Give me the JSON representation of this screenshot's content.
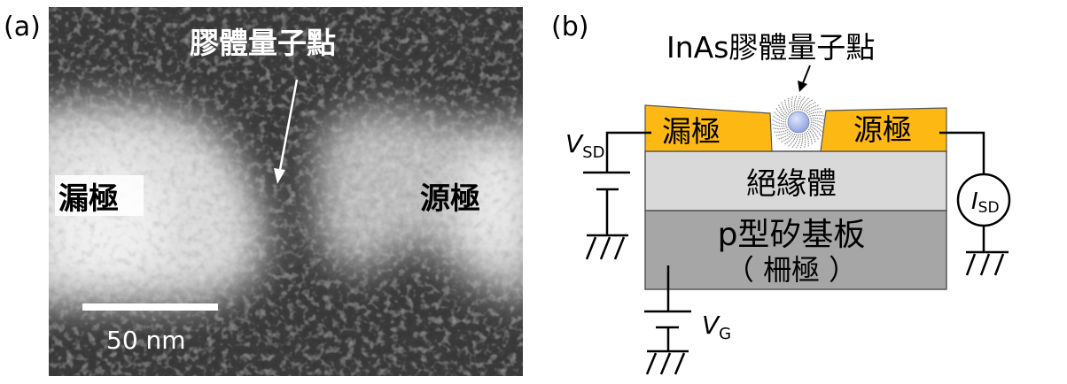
{
  "panel_a": {
    "label": "(a)",
    "quantum_dot_label": "膠體量子點",
    "drain_label": "漏極",
    "source_label": "源極",
    "scale_bar_label": "50 nm"
  },
  "panel_b": {
    "label": "(b)",
    "quantum_dot_label": "InAs膠體量子點",
    "drain_label": "漏極",
    "source_label": "源極",
    "insulator_label": "絕緣體",
    "substrate_label": "p型矽基板",
    "gate_label": "（ 柵極 ）",
    "vsd": {
      "symbol": "V",
      "subscript": "SD"
    },
    "isd": {
      "symbol": "I",
      "subscript": "SD"
    },
    "vg": {
      "symbol": "V",
      "subscript": "G"
    }
  },
  "colors": {
    "electrode": "#FDB813",
    "insulator": "#D9D9D9",
    "substrate": "#A6A6A6",
    "quantum_dot": "#A9B8E8"
  }
}
